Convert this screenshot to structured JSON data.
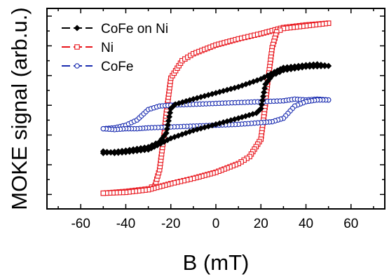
{
  "chart_data": {
    "type": "scatter",
    "title": "",
    "xlabel": "B (mT)",
    "ylabel": "MOKE signal (arb.u.)",
    "xlim": [
      -75,
      75
    ],
    "ylim": [
      -1.15,
      1.15
    ],
    "xticks": [
      -60,
      -40,
      -20,
      0,
      20,
      40,
      60
    ],
    "xtick_labels": [
      "-60",
      "-40",
      "-20",
      "0",
      "20",
      "40",
      "60"
    ],
    "y_tick_labels_shown": false,
    "grid": false,
    "legend_position": "top-left",
    "series": [
      {
        "name": "CoFe on Ni",
        "color": "#000000",
        "marker": "filled-diamond",
        "line": "dashed",
        "upper_branch": [
          [
            -50,
            -0.51
          ],
          [
            -40,
            -0.48
          ],
          [
            -30,
            -0.44
          ],
          [
            -25,
            -0.38
          ],
          [
            -22,
            -0.28
          ],
          [
            -20,
            0.0
          ],
          [
            -18,
            0.05
          ],
          [
            -10,
            0.11
          ],
          [
            0,
            0.18
          ],
          [
            10,
            0.25
          ],
          [
            20,
            0.34
          ],
          [
            26,
            0.42
          ],
          [
            30,
            0.47
          ],
          [
            40,
            0.5
          ],
          [
            45,
            0.51
          ],
          [
            50,
            0.49
          ]
        ],
        "lower_branch": [
          [
            50,
            0.49
          ],
          [
            40,
            0.48
          ],
          [
            30,
            0.44
          ],
          [
            25,
            0.38
          ],
          [
            22,
            0.28
          ],
          [
            20,
            0.0
          ],
          [
            18,
            -0.05
          ],
          [
            10,
            -0.11
          ],
          [
            0,
            -0.18
          ],
          [
            -10,
            -0.25
          ],
          [
            -20,
            -0.34
          ],
          [
            -26,
            -0.42
          ],
          [
            -30,
            -0.47
          ],
          [
            -40,
            -0.5
          ],
          [
            -45,
            -0.51
          ],
          [
            -50,
            -0.49
          ]
        ]
      },
      {
        "name": "Ni",
        "color": "#e8141b",
        "marker": "open-square",
        "line": "dashed",
        "upper_branch": [
          [
            -50,
            -0.97
          ],
          [
            -40,
            -0.95
          ],
          [
            -30,
            -0.92
          ],
          [
            -27,
            -0.88
          ],
          [
            -25,
            -0.7
          ],
          [
            -23,
            -0.3
          ],
          [
            -22,
            -0.05
          ],
          [
            -20,
            0.35
          ],
          [
            -15,
            0.55
          ],
          [
            -10,
            0.63
          ],
          [
            0,
            0.73
          ],
          [
            10,
            0.8
          ],
          [
            20,
            0.86
          ],
          [
            30,
            0.93
          ],
          [
            40,
            0.96
          ],
          [
            50,
            0.98
          ]
        ],
        "lower_branch": [
          [
            50,
            0.98
          ],
          [
            40,
            0.95
          ],
          [
            30,
            0.92
          ],
          [
            27,
            0.88
          ],
          [
            25,
            0.7
          ],
          [
            23,
            0.3
          ],
          [
            22,
            0.05
          ],
          [
            20,
            -0.35
          ],
          [
            15,
            -0.55
          ],
          [
            10,
            -0.63
          ],
          [
            0,
            -0.73
          ],
          [
            -10,
            -0.8
          ],
          [
            -20,
            -0.86
          ],
          [
            -30,
            -0.93
          ],
          [
            -40,
            -0.96
          ],
          [
            -50,
            -0.97
          ]
        ]
      },
      {
        "name": "CoFe",
        "color": "#1a2cb0",
        "marker": "open-circle",
        "line": "dashed",
        "upper_branch": [
          [
            -50,
            -0.23
          ],
          [
            -45,
            -0.22
          ],
          [
            -40,
            -0.19
          ],
          [
            -35,
            -0.13
          ],
          [
            -30,
            -0.01
          ],
          [
            -25,
            0.03
          ],
          [
            -20,
            0.04
          ],
          [
            -10,
            0.05
          ],
          [
            0,
            0.06
          ],
          [
            10,
            0.07
          ],
          [
            20,
            0.08
          ],
          [
            30,
            0.09
          ],
          [
            35,
            0.11
          ],
          [
            40,
            0.1
          ],
          [
            45,
            0.11
          ],
          [
            50,
            0.1
          ]
        ],
        "lower_branch": [
          [
            50,
            0.1
          ],
          [
            45,
            0.1
          ],
          [
            40,
            0.08
          ],
          [
            35,
            0.03
          ],
          [
            30,
            -0.11
          ],
          [
            25,
            -0.15
          ],
          [
            20,
            -0.16
          ],
          [
            10,
            -0.18
          ],
          [
            0,
            -0.19
          ],
          [
            -10,
            -0.2
          ],
          [
            -20,
            -0.21
          ],
          [
            -30,
            -0.22
          ],
          [
            -35,
            -0.23
          ],
          [
            -40,
            -0.23
          ],
          [
            -45,
            -0.24
          ],
          [
            -50,
            -0.23
          ]
        ]
      }
    ]
  }
}
